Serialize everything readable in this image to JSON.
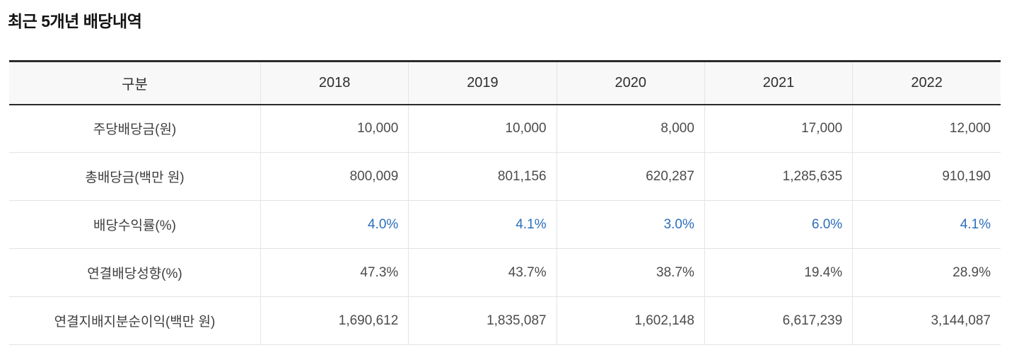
{
  "page": {
    "title": "최근 5개년 배당내역"
  },
  "table": {
    "columns": [
      "구분",
      "2018",
      "2019",
      "2020",
      "2021",
      "2022"
    ],
    "rows": [
      {
        "label": "주당배당금(원)",
        "values": [
          "10,000",
          "10,000",
          "8,000",
          "17,000",
          "12,000"
        ],
        "highlight": false
      },
      {
        "label": "총배당금(백만 원)",
        "values": [
          "800,009",
          "801,156",
          "620,287",
          "1,285,635",
          "910,190"
        ],
        "highlight": false
      },
      {
        "label": "배당수익률(%)",
        "values": [
          "4.0%",
          "4.1%",
          "3.0%",
          "6.0%",
          "4.1%"
        ],
        "highlight": true
      },
      {
        "label": "연결배당성향(%)",
        "values": [
          "47.3%",
          "43.7%",
          "38.7%",
          "19.4%",
          "28.9%"
        ],
        "highlight": false
      },
      {
        "label": "연결지배지분순이익(백만 원)",
        "values": [
          "1,690,612",
          "1,835,087",
          "1,602,148",
          "6,617,239",
          "3,144,087"
        ],
        "highlight": false
      }
    ],
    "colors": {
      "accent_blue": "#2b6fbc",
      "border_dark": "#2b2b2e",
      "border_light": "#e3e3e3",
      "header_bg": "#f8f8f9"
    }
  },
  "chart_data": {
    "type": "table",
    "title": "최근 5개년 배당내역",
    "categories": [
      "2018",
      "2019",
      "2020",
      "2021",
      "2022"
    ],
    "series": [
      {
        "name": "주당배당금(원)",
        "values": [
          10000,
          10000,
          8000,
          17000,
          12000
        ]
      },
      {
        "name": "총배당금(백만 원)",
        "values": [
          800009,
          801156,
          620287,
          1285635,
          910190
        ]
      },
      {
        "name": "배당수익률(%)",
        "values": [
          4.0,
          4.1,
          3.0,
          6.0,
          4.1
        ]
      },
      {
        "name": "연결배당성향(%)",
        "values": [
          47.3,
          43.7,
          38.7,
          19.4,
          28.9
        ]
      },
      {
        "name": "연결지배지분순이익(백만 원)",
        "values": [
          1690612,
          1835087,
          1602148,
          6617239,
          3144087
        ]
      }
    ]
  }
}
